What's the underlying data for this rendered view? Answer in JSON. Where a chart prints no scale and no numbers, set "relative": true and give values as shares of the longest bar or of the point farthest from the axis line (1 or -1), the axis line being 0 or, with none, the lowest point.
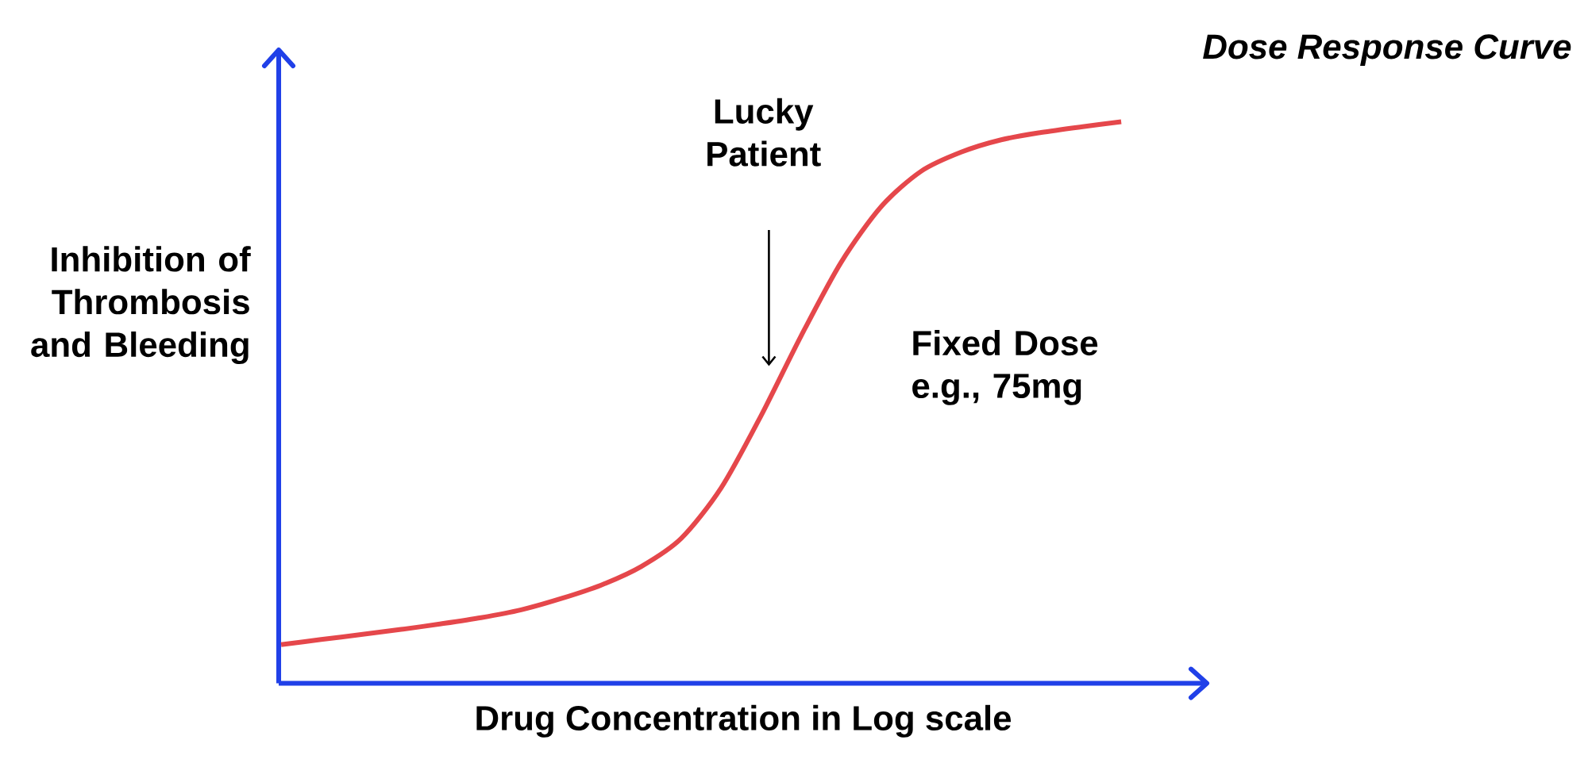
{
  "chart_data": {
    "type": "line",
    "title": "Dose Response Curve",
    "xlabel": "Drug Concentration in Log scale",
    "ylabel": "Inhibition of Thrombosis and Bleeding",
    "annotations": [
      "Lucky Patient",
      "Fixed Dose e.g., 75mg"
    ],
    "categories": [
      null,
      null,
      null,
      null,
      null,
      null,
      null,
      null,
      null,
      null,
      null,
      null,
      null,
      null,
      null,
      null,
      null,
      null,
      null,
      null,
      null,
      null
    ],
    "values": [
      0.069,
      0.078,
      0.087,
      0.096,
      0.106,
      0.117,
      0.131,
      0.151,
      0.175,
      0.208,
      0.258,
      0.348,
      0.477,
      0.619,
      0.75,
      0.849,
      0.912,
      0.946,
      0.968,
      0.981,
      0.991,
      1
    ],
    "color": "#e5474b",
    "relative": true,
    "marker": "none"
  }
}
